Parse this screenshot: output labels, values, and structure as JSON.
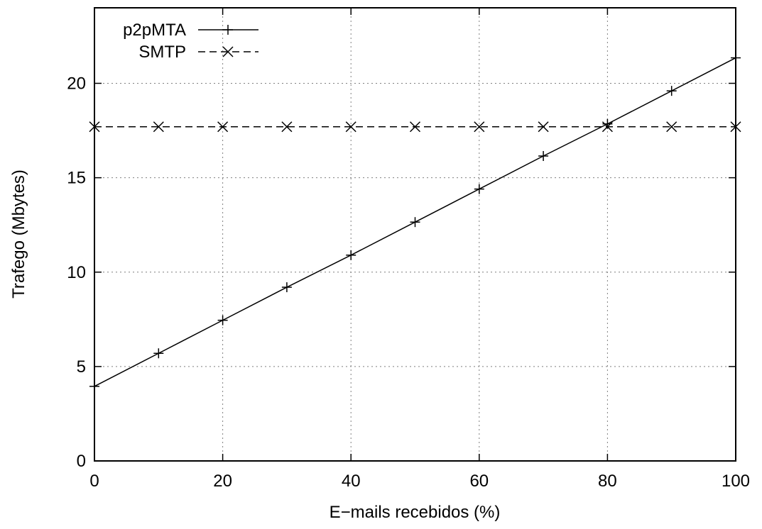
{
  "chart_data": {
    "type": "line",
    "xlabel": "E−mails recebidos (%)",
    "ylabel": "Trafego (Mbytes)",
    "xlim": [
      0,
      100
    ],
    "ylim": [
      0,
      24
    ],
    "xticks": [
      0,
      20,
      40,
      60,
      80,
      100
    ],
    "yticks": [
      0,
      5,
      10,
      15,
      20
    ],
    "grid": true,
    "legend_position": "top-left",
    "series": [
      {
        "name": "p2pMTA",
        "marker": "plus",
        "line_style": "solid",
        "color": "#000000",
        "x": [
          0,
          10,
          20,
          30,
          40,
          50,
          60,
          70,
          80,
          90,
          100
        ],
        "y": [
          3.95,
          5.7,
          7.45,
          9.2,
          10.9,
          12.65,
          14.4,
          16.15,
          17.85,
          19.6,
          21.35
        ]
      },
      {
        "name": "SMTP",
        "marker": "cross",
        "line_style": "dashed",
        "color": "#000000",
        "x": [
          0,
          10,
          20,
          30,
          40,
          50,
          60,
          70,
          80,
          90,
          100
        ],
        "y": [
          17.7,
          17.7,
          17.7,
          17.7,
          17.7,
          17.7,
          17.7,
          17.7,
          17.7,
          17.7,
          17.7
        ]
      }
    ]
  }
}
